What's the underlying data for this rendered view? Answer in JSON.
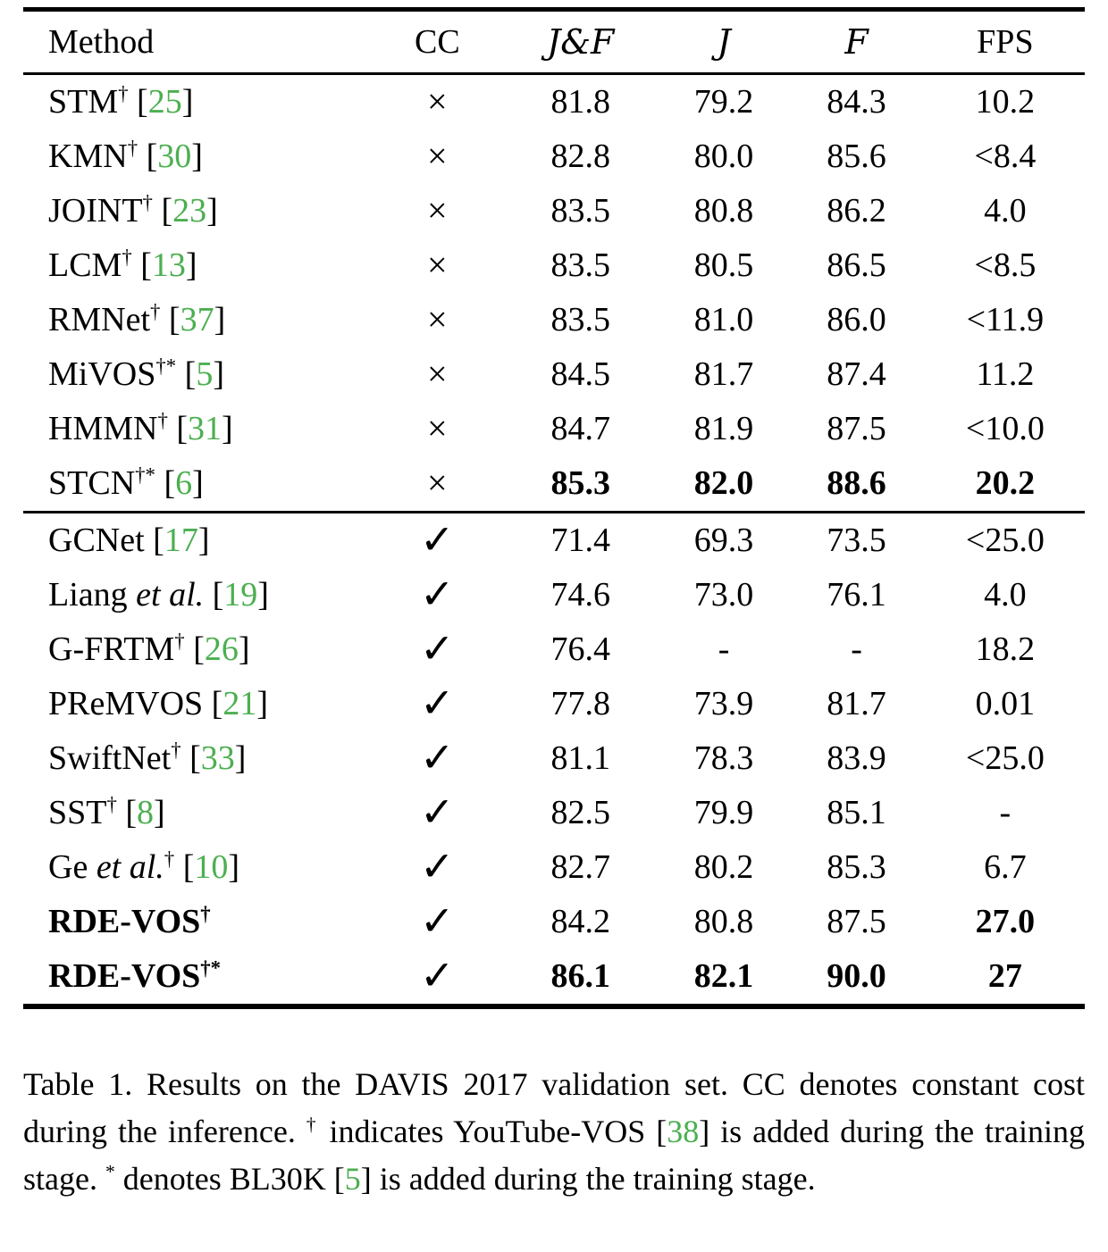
{
  "accent_green": "#4CAF50",
  "table": {
    "columns": {
      "method": "Method",
      "cc": "CC",
      "jf": "J&F",
      "j": "J",
      "f": "F",
      "fps": "FPS"
    },
    "cc_glyphs": {
      "yes": "✓",
      "no": "×"
    },
    "sections": [
      {
        "rows": [
          {
            "method": {
              "pre": "STM",
              "italic": "",
              "sup": "†",
              "ref": "25",
              "bold": false
            },
            "cc": "no",
            "vals": [
              "81.8",
              "79.2",
              "84.3",
              "10.2"
            ],
            "bold": [
              false,
              false,
              false,
              false
            ]
          },
          {
            "method": {
              "pre": "KMN",
              "italic": "",
              "sup": "†",
              "ref": "30",
              "bold": false
            },
            "cc": "no",
            "vals": [
              "82.8",
              "80.0",
              "85.6",
              "<8.4"
            ],
            "bold": [
              false,
              false,
              false,
              false
            ]
          },
          {
            "method": {
              "pre": "JOINT",
              "italic": "",
              "sup": "†",
              "ref": "23",
              "bold": false
            },
            "cc": "no",
            "vals": [
              "83.5",
              "80.8",
              "86.2",
              "4.0"
            ],
            "bold": [
              false,
              false,
              false,
              false
            ]
          },
          {
            "method": {
              "pre": "LCM",
              "italic": "",
              "sup": "†",
              "ref": "13",
              "bold": false
            },
            "cc": "no",
            "vals": [
              "83.5",
              "80.5",
              "86.5",
              "<8.5"
            ],
            "bold": [
              false,
              false,
              false,
              false
            ]
          },
          {
            "method": {
              "pre": "RMNet",
              "italic": "",
              "sup": "†",
              "ref": "37",
              "bold": false
            },
            "cc": "no",
            "vals": [
              "83.5",
              "81.0",
              "86.0",
              "<11.9"
            ],
            "bold": [
              false,
              false,
              false,
              false
            ]
          },
          {
            "method": {
              "pre": "MiVOS",
              "italic": "",
              "sup": "†*",
              "ref": "5",
              "bold": false
            },
            "cc": "no",
            "vals": [
              "84.5",
              "81.7",
              "87.4",
              "11.2"
            ],
            "bold": [
              false,
              false,
              false,
              false
            ]
          },
          {
            "method": {
              "pre": "HMMN",
              "italic": "",
              "sup": "†",
              "ref": "31",
              "bold": false
            },
            "cc": "no",
            "vals": [
              "84.7",
              "81.9",
              "87.5",
              "<10.0"
            ],
            "bold": [
              false,
              false,
              false,
              false
            ]
          },
          {
            "method": {
              "pre": "STCN",
              "italic": "",
              "sup": "†*",
              "ref": "6",
              "bold": false
            },
            "cc": "no",
            "vals": [
              "85.3",
              "82.0",
              "88.6",
              "20.2"
            ],
            "bold": [
              true,
              true,
              true,
              true
            ]
          }
        ]
      },
      {
        "rows": [
          {
            "method": {
              "pre": "GCNet",
              "italic": "",
              "sup": "",
              "ref": "17",
              "bold": false
            },
            "cc": "yes",
            "vals": [
              "71.4",
              "69.3",
              "73.5",
              "<25.0"
            ],
            "bold": [
              false,
              false,
              false,
              false
            ]
          },
          {
            "method": {
              "pre": "Liang ",
              "italic": "et al.",
              "sup": "",
              "ref": "19",
              "bold": false
            },
            "cc": "yes",
            "vals": [
              "74.6",
              "73.0",
              "76.1",
              "4.0"
            ],
            "bold": [
              false,
              false,
              false,
              false
            ]
          },
          {
            "method": {
              "pre": "G-FRTM",
              "italic": "",
              "sup": "†",
              "ref": "26",
              "bold": false
            },
            "cc": "yes",
            "vals": [
              "76.4",
              "-",
              "-",
              "18.2"
            ],
            "bold": [
              false,
              false,
              false,
              false
            ]
          },
          {
            "method": {
              "pre": "PReMVOS",
              "italic": "",
              "sup": "",
              "ref": "21",
              "bold": false
            },
            "cc": "yes",
            "vals": [
              "77.8",
              "73.9",
              "81.7",
              "0.01"
            ],
            "bold": [
              false,
              false,
              false,
              false
            ]
          },
          {
            "method": {
              "pre": "SwiftNet",
              "italic": "",
              "sup": "†",
              "ref": "33",
              "bold": false
            },
            "cc": "yes",
            "vals": [
              "81.1",
              "78.3",
              "83.9",
              "<25.0"
            ],
            "bold": [
              false,
              false,
              false,
              false
            ]
          },
          {
            "method": {
              "pre": "SST",
              "italic": "",
              "sup": "†",
              "ref": "8",
              "bold": false
            },
            "cc": "yes",
            "vals": [
              "82.5",
              "79.9",
              "85.1",
              "-"
            ],
            "bold": [
              false,
              false,
              false,
              false
            ]
          },
          {
            "method": {
              "pre": "Ge ",
              "italic": "et al.",
              "sup": "†",
              "ref": "10",
              "bold": false
            },
            "cc": "yes",
            "vals": [
              "82.7",
              "80.2",
              "85.3",
              "6.7"
            ],
            "bold": [
              false,
              false,
              false,
              false
            ]
          },
          {
            "method": {
              "pre": "RDE-VOS",
              "italic": "",
              "sup": "†",
              "ref": "",
              "bold": true
            },
            "cc": "yes",
            "vals": [
              "84.2",
              "80.8",
              "87.5",
              "27.0"
            ],
            "bold": [
              false,
              false,
              false,
              true
            ]
          },
          {
            "method": {
              "pre": "RDE-VOS",
              "italic": "",
              "sup": "†*",
              "ref": "",
              "bold": true
            },
            "cc": "yes",
            "vals": [
              "86.1",
              "82.1",
              "90.0",
              "27"
            ],
            "bold": [
              true,
              true,
              true,
              true
            ]
          }
        ]
      }
    ]
  },
  "caption": {
    "segments": [
      {
        "t": "Table 1.  Results on the DAVIS 2017 validation set.  CC denotes constant cost during the inference. "
      },
      {
        "t": "†",
        "sup": true
      },
      {
        "t": " indicates YouTube-VOS ["
      },
      {
        "t": "38",
        "ref": true
      },
      {
        "t": "] is added during the training stage. "
      },
      {
        "t": "*",
        "sup": true
      },
      {
        "t": " denotes BL30K ["
      },
      {
        "t": "5",
        "ref": true
      },
      {
        "t": "] is added during the training stage."
      }
    ]
  }
}
